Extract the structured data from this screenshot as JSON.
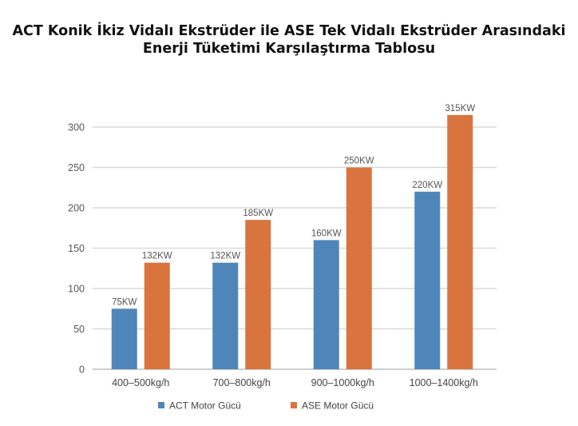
{
  "chart_data": {
    "type": "bar",
    "title_line1": "ACT Konik İkiz Vidalı Ekstrüder ile ASE Tek Vidalı Ekstrüder Arasındaki",
    "title_line2": "Enerji Tüketimi Karşılaştırma Tablosu",
    "categories": [
      "400–500kg/h",
      "700–800kg/h",
      "900–1000kg/h",
      "1000–1400kg/h"
    ],
    "series": [
      {
        "name": "ACT Motor Gücü",
        "color": "#4f86b9",
        "values": [
          75,
          132,
          160,
          220
        ],
        "labels": [
          "75KW",
          "132KW",
          "160KW",
          "220KW"
        ]
      },
      {
        "name": "ASE Motor Gücü",
        "color": "#d9743e",
        "values": [
          132,
          185,
          250,
          315
        ],
        "labels": [
          "132KW",
          "185KW",
          "250KW",
          "315KW"
        ]
      }
    ],
    "yticks": [
      0,
      50,
      100,
      150,
      200,
      250,
      300
    ],
    "ylim": [
      0,
      330
    ],
    "grid": true,
    "legend_position": "bottom"
  }
}
